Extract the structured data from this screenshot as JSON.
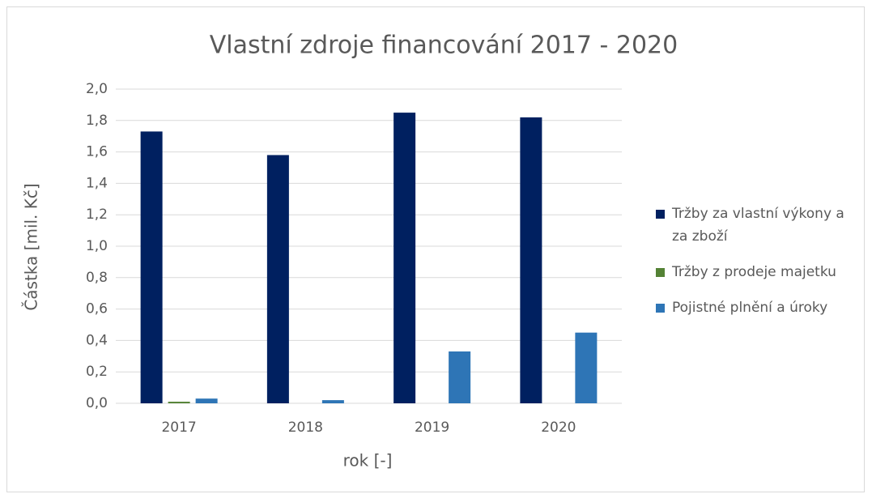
{
  "chart_data": {
    "type": "bar",
    "title": "Vlastní zdroje financování 2017 - 2020",
    "xlabel": "rok [-]",
    "ylabel": "Částka [mil. Kč]",
    "categories": [
      "2017",
      "2018",
      "2019",
      "2020"
    ],
    "series": [
      {
        "name": "Tržby za vlastní výkony a za zboží",
        "color": "#002060",
        "values": [
          1.73,
          1.58,
          1.85,
          1.82
        ]
      },
      {
        "name": "Tržby z prodeje majetku",
        "color": "#548235",
        "values": [
          0.01,
          0,
          0,
          0
        ]
      },
      {
        "name": "Pojistné plnění a úroky",
        "color": "#2e75b6",
        "values": [
          0.03,
          0.02,
          0.33,
          0.45
        ]
      }
    ],
    "ylim": [
      0,
      2
    ],
    "yticks": [
      {
        "value": 0,
        "label": "0,0"
      },
      {
        "value": 0.2,
        "label": "0,2"
      },
      {
        "value": 0.4,
        "label": "0,4"
      },
      {
        "value": 0.6,
        "label": "0,6"
      },
      {
        "value": 0.8,
        "label": "0,8"
      },
      {
        "value": 1,
        "label": "1,0"
      },
      {
        "value": 1.2,
        "label": "1,2"
      },
      {
        "value": 1.4,
        "label": "1,4"
      },
      {
        "value": 1.6,
        "label": "1,6"
      },
      {
        "value": 1.8,
        "label": "1,8"
      },
      {
        "value": 2,
        "label": "2,0"
      }
    ],
    "grid": true,
    "legend": "right"
  }
}
